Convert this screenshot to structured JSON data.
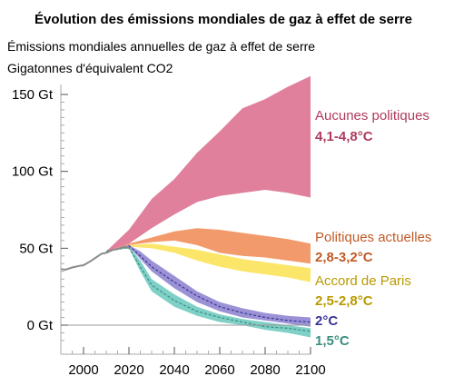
{
  "chart_data": {
    "type": "area",
    "title": "Évolution des émissions mondiales de gaz à effet de serre",
    "subtitle": "Émissions mondiales annuelles de gaz à effet de serre",
    "unit_label": "Gigatonnes d'équivalent CO2",
    "xlim": [
      1990,
      2100
    ],
    "ylim": [
      -10,
      160
    ],
    "x_ticks": [
      2000,
      2020,
      2040,
      2060,
      2080,
      2100
    ],
    "x_tick_labels": [
      "2000",
      "2020",
      "2040",
      "2060",
      "2080",
      "2100"
    ],
    "y_ticks": [
      0,
      50,
      100,
      150
    ],
    "y_tick_labels": [
      "0 Gt",
      "50 Gt",
      "100 Gt",
      "150 Gt"
    ],
    "historical": {
      "x": [
        1990,
        1992,
        1995,
        1998,
        2000,
        2003,
        2005,
        2008,
        2010,
        2013,
        2015,
        2018,
        2020
      ],
      "y": [
        36.5,
        36,
        37.5,
        38.5,
        39,
        41.5,
        43.5,
        46.5,
        47,
        49,
        49.5,
        51,
        50
      ]
    },
    "series": [
      {
        "name": "Aucunes politiques",
        "range_label": "4,1-4,8°C",
        "color": "#e0809d",
        "text_color": "#b03a5e",
        "low": {
          "x": [
            2010,
            2020,
            2030,
            2040,
            2050,
            2060,
            2070,
            2080,
            2090,
            2100
          ],
          "y": [
            48,
            53,
            63,
            72,
            80,
            84,
            86,
            88,
            86,
            83
          ]
        },
        "high": {
          "x": [
            2010,
            2020,
            2030,
            2040,
            2050,
            2060,
            2070,
            2080,
            2090,
            2100
          ],
          "y": [
            48,
            62,
            82,
            95,
            112,
            126,
            141,
            147,
            155,
            162
          ]
        }
      },
      {
        "name": "Politiques actuelles",
        "range_label": "2,8-3,2°C",
        "color": "#f39a6c",
        "text_color": "#c05a26",
        "low": {
          "x": [
            2010,
            2020,
            2030,
            2040,
            2050,
            2060,
            2070,
            2080,
            2090,
            2100
          ],
          "y": [
            48,
            52,
            54,
            55,
            52,
            47,
            45,
            44,
            42,
            40
          ]
        },
        "high": {
          "x": [
            2010,
            2020,
            2030,
            2040,
            2050,
            2060,
            2070,
            2080,
            2090,
            2100
          ],
          "y": [
            48,
            53,
            57,
            61,
            63,
            62,
            60,
            58,
            56,
            53
          ]
        }
      },
      {
        "name": "Accord de Paris",
        "range_label": "2,5-2,8°C",
        "color": "#fce66a",
        "text_color": "#b89a00",
        "low": {
          "x": [
            2010,
            2020,
            2030,
            2040,
            2050,
            2060,
            2070,
            2080,
            2090,
            2100
          ],
          "y": [
            48,
            51,
            50,
            47,
            42,
            38,
            35,
            33,
            31,
            28
          ]
        },
        "high": {
          "x": [
            2010,
            2020,
            2030,
            2040,
            2050,
            2060,
            2070,
            2080,
            2090,
            2100
          ],
          "y": [
            48,
            52,
            53,
            51,
            49,
            46,
            43,
            41,
            39,
            37
          ]
        }
      },
      {
        "name": "2°C",
        "range_label": "2°C",
        "color": "#9b92d6",
        "text_color": "#3a3496",
        "low": {
          "x": [
            2010,
            2020,
            2025,
            2030,
            2040,
            2050,
            2060,
            2070,
            2080,
            2090,
            2100
          ],
          "y": [
            48,
            51,
            43,
            35,
            24,
            15,
            9,
            5,
            3,
            1,
            -1
          ]
        },
        "high": {
          "x": [
            2010,
            2020,
            2025,
            2030,
            2040,
            2050,
            2060,
            2070,
            2080,
            2090,
            2100
          ],
          "y": [
            48,
            52,
            48,
            42,
            32,
            22,
            15,
            11,
            8,
            6,
            5
          ]
        },
        "median": {
          "x": [
            2010,
            2020,
            2025,
            2030,
            2040,
            2050,
            2060,
            2070,
            2080,
            2090,
            2100
          ],
          "y": [
            48,
            51.5,
            45,
            38,
            28,
            19,
            12,
            8,
            5,
            3,
            2
          ]
        }
      },
      {
        "name": "1,5°C",
        "range_label": "1,5°C",
        "color": "#7fd0c6",
        "text_color": "#3a8e80",
        "low": {
          "x": [
            2010,
            2020,
            2025,
            2030,
            2040,
            2050,
            2060,
            2070,
            2080,
            2090,
            2100
          ],
          "y": [
            48,
            50,
            35,
            22,
            12,
            6,
            2,
            0,
            -3,
            -5,
            -8
          ]
        },
        "high": {
          "x": [
            2010,
            2020,
            2025,
            2030,
            2040,
            2050,
            2060,
            2070,
            2080,
            2090,
            2100
          ],
          "y": [
            48,
            51,
            42,
            30,
            20,
            12,
            7,
            4,
            2,
            0,
            -2
          ]
        },
        "median": {
          "x": [
            2010,
            2020,
            2025,
            2030,
            2040,
            2050,
            2060,
            2070,
            2080,
            2090,
            2100
          ],
          "y": [
            48,
            50.5,
            38,
            26,
            16,
            9,
            5,
            2,
            -1,
            -2,
            -4
          ]
        }
      }
    ],
    "zero_line": true,
    "grid": false,
    "legend": "right"
  }
}
